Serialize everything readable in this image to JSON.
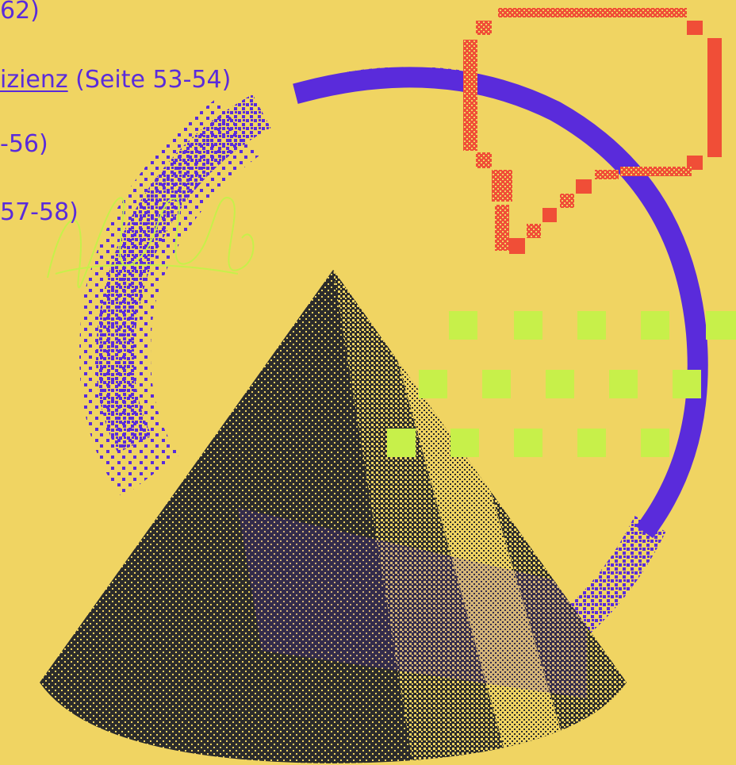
{
  "colors": {
    "background": "#F0D462",
    "text": "#5A2BDB",
    "ring": "#5A2BDB",
    "cursor": "#F04E37",
    "squares": "#C7F04A",
    "scribble": "#C7F04A",
    "cone": "#2B2B2B"
  },
  "toc": [
    {
      "pre": "62)",
      "link": "",
      "post": ""
    },
    {
      "pre": "",
      "link": "izienz",
      "post": " (Seite 53-54)"
    },
    {
      "pre": "-56)",
      "link": "",
      "post": ""
    },
    {
      "pre": "57-58)",
      "link": "",
      "post": ""
    }
  ],
  "illustration": {
    "elements": [
      "dithered-cone",
      "dithered-ring",
      "pixel-cursor-icon",
      "green-square-grid",
      "scribble-doodle"
    ]
  }
}
